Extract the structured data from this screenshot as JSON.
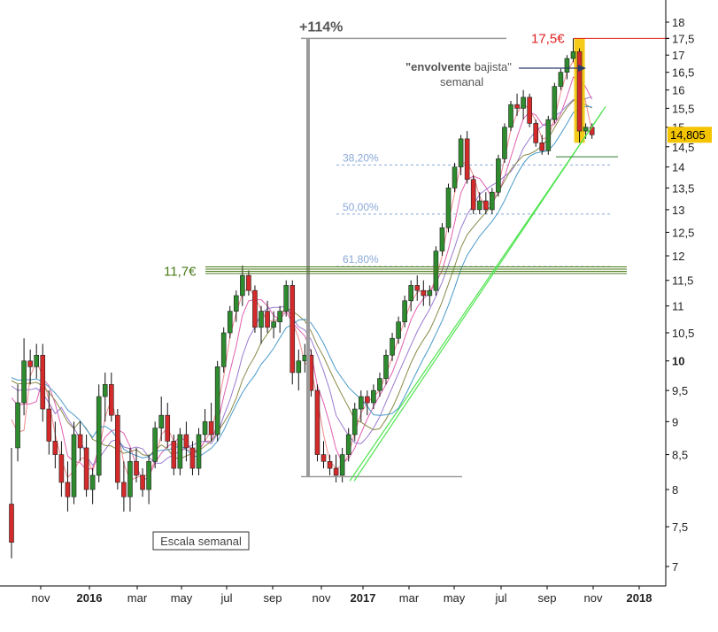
{
  "chart_data": {
    "type": "candlestick",
    "timeframe_label": "Escala semanal",
    "ylim": [
      6.8,
      18.2
    ],
    "y_scale": "log",
    "x_ticks": [
      {
        "label": "nov",
        "bold": false
      },
      {
        "label": "2016",
        "bold": true
      },
      {
        "label": "mar",
        "bold": false
      },
      {
        "label": "may",
        "bold": false
      },
      {
        "label": "jul",
        "bold": false
      },
      {
        "label": "sep",
        "bold": false
      },
      {
        "label": "nov",
        "bold": false
      },
      {
        "label": "2017",
        "bold": true
      },
      {
        "label": "mar",
        "bold": false
      },
      {
        "label": "may",
        "bold": false
      },
      {
        "label": "jul",
        "bold": false
      },
      {
        "label": "sep",
        "bold": false
      },
      {
        "label": "nov",
        "bold": false
      },
      {
        "label": "2018",
        "bold": true
      }
    ],
    "y_ticks": [
      {
        "label": "18",
        "value": 18
      },
      {
        "label": "17,5",
        "value": 17.5
      },
      {
        "label": "17",
        "value": 17
      },
      {
        "label": "16,5",
        "value": 16.5
      },
      {
        "label": "16",
        "value": 16
      },
      {
        "label": "15,5",
        "value": 15.5
      },
      {
        "label": "15",
        "value": 15
      },
      {
        "label": "14,5",
        "value": 14.5
      },
      {
        "label": "14",
        "value": 14
      },
      {
        "label": "13,5",
        "value": 13.5
      },
      {
        "label": "13",
        "value": 13
      },
      {
        "label": "12,5",
        "value": 12.5
      },
      {
        "label": "12",
        "value": 12
      },
      {
        "label": "11,5",
        "value": 11.5
      },
      {
        "label": "11",
        "value": 11
      },
      {
        "label": "10,5",
        "value": 10.5
      },
      {
        "label": "10",
        "value": 10
      },
      {
        "label": "9,5",
        "value": 9.5
      },
      {
        "label": "9",
        "value": 9
      },
      {
        "label": "8,5",
        "value": 8.5
      },
      {
        "label": "8",
        "value": 8
      },
      {
        "label": "7,5",
        "value": 7.5
      },
      {
        "label": "7",
        "value": 7
      }
    ],
    "last_price_label": "14,805",
    "last_price": 14.805,
    "annotations": {
      "gain_label": "+114%",
      "gain_low": 8.18,
      "gain_high": 17.5,
      "top_label": "17,5€",
      "top_value": 17.5,
      "resistance_label": "11,7€",
      "resistance_value": 11.7,
      "pattern_label_bold": "\"envolvente ",
      "pattern_label_rest": "bajista\"",
      "pattern_label_line2": "semanal",
      "fib_levels": [
        {
          "label": "38,20%",
          "value": 14.05
        },
        {
          "label": "50,00%",
          "value": 12.9
        },
        {
          "label": "61,80%",
          "value": 11.78
        }
      ],
      "support_value": 14.25
    },
    "colors": {
      "up": "#2e8b2e",
      "down": "#d42a2a",
      "gain": "#9a9a9a",
      "top_line": "#e02020",
      "resistance": "#4a7a1a",
      "trendline": "#4ee44e",
      "highlight": "#f5c400",
      "fib": "#8aa8d8"
    },
    "candles": [
      [
        7.8,
        8.6,
        7.1,
        7.3
      ],
      [
        8.6,
        9.6,
        8.4,
        9.3
      ],
      [
        9.3,
        10.4,
        9.1,
        10.0
      ],
      [
        10.0,
        10.2,
        9.6,
        9.9
      ],
      [
        9.9,
        10.3,
        9.7,
        10.1
      ],
      [
        10.1,
        10.3,
        9.0,
        9.2
      ],
      [
        9.2,
        9.5,
        8.5,
        8.7
      ],
      [
        8.7,
        9.0,
        8.3,
        8.5
      ],
      [
        8.5,
        8.7,
        7.9,
        8.1
      ],
      [
        8.1,
        8.4,
        7.7,
        7.9
      ],
      [
        7.9,
        9.0,
        7.8,
        8.8
      ],
      [
        8.8,
        9.0,
        8.4,
        8.6
      ],
      [
        8.6,
        8.8,
        7.9,
        8.0
      ],
      [
        8.0,
        8.3,
        7.8,
        8.2
      ],
      [
        8.2,
        9.6,
        8.1,
        9.4
      ],
      [
        9.4,
        9.8,
        9.0,
        9.6
      ],
      [
        9.6,
        9.8,
        9.0,
        9.1
      ],
      [
        9.1,
        9.2,
        8.0,
        8.1
      ],
      [
        8.1,
        8.4,
        7.7,
        7.9
      ],
      [
        7.9,
        8.6,
        7.7,
        8.4
      ],
      [
        8.4,
        8.6,
        8.1,
        8.2
      ],
      [
        8.2,
        8.3,
        7.9,
        8.0
      ],
      [
        8.0,
        8.5,
        7.8,
        8.4
      ],
      [
        8.4,
        9.0,
        8.3,
        8.9
      ],
      [
        8.9,
        9.4,
        8.7,
        9.1
      ],
      [
        9.1,
        9.3,
        8.6,
        8.7
      ],
      [
        8.7,
        8.8,
        8.2,
        8.3
      ],
      [
        8.3,
        8.9,
        8.2,
        8.8
      ],
      [
        8.8,
        9.0,
        8.4,
        8.6
      ],
      [
        8.6,
        8.7,
        8.2,
        8.3
      ],
      [
        8.3,
        8.9,
        8.2,
        8.8
      ],
      [
        8.8,
        9.2,
        8.7,
        9.0
      ],
      [
        9.0,
        9.3,
        8.7,
        8.8
      ],
      [
        8.8,
        10.0,
        8.7,
        9.9
      ],
      [
        9.9,
        10.6,
        9.8,
        10.5
      ],
      [
        10.5,
        11.0,
        10.4,
        10.9
      ],
      [
        10.9,
        11.3,
        10.7,
        11.2
      ],
      [
        11.2,
        11.8,
        11.0,
        11.6
      ],
      [
        11.6,
        11.7,
        11.2,
        11.3
      ],
      [
        11.3,
        11.4,
        10.5,
        10.6
      ],
      [
        10.6,
        11.0,
        10.3,
        10.9
      ],
      [
        10.9,
        11.1,
        10.5,
        10.6
      ],
      [
        10.6,
        10.9,
        10.4,
        10.7
      ],
      [
        10.7,
        11.0,
        10.5,
        10.9
      ],
      [
        10.9,
        11.5,
        10.8,
        11.4
      ],
      [
        11.4,
        11.5,
        9.6,
        9.8
      ],
      [
        9.8,
        10.2,
        9.5,
        10.0
      ],
      [
        10.0,
        10.3,
        9.8,
        10.1
      ],
      [
        10.1,
        10.2,
        9.4,
        9.5
      ],
      [
        9.5,
        9.6,
        8.4,
        8.5
      ],
      [
        8.5,
        8.7,
        8.3,
        8.4
      ],
      [
        8.4,
        8.5,
        8.2,
        8.3
      ],
      [
        8.3,
        8.5,
        8.1,
        8.2
      ],
      [
        8.2,
        8.6,
        8.1,
        8.5
      ],
      [
        8.5,
        8.9,
        8.4,
        8.8
      ],
      [
        8.8,
        9.3,
        8.7,
        9.2
      ],
      [
        9.2,
        9.5,
        9.0,
        9.4
      ],
      [
        9.4,
        9.5,
        9.1,
        9.3
      ],
      [
        9.3,
        9.6,
        9.2,
        9.5
      ],
      [
        9.5,
        9.8,
        9.4,
        9.7
      ],
      [
        9.7,
        10.2,
        9.6,
        10.1
      ],
      [
        10.1,
        10.5,
        10.0,
        10.4
      ],
      [
        10.4,
        10.8,
        10.3,
        10.7
      ],
      [
        10.7,
        11.2,
        10.6,
        11.1
      ],
      [
        11.1,
        11.5,
        10.9,
        11.4
      ],
      [
        11.4,
        11.6,
        11.1,
        11.3
      ],
      [
        11.3,
        11.5,
        11.0,
        11.2
      ],
      [
        11.2,
        11.4,
        11.0,
        11.3
      ],
      [
        11.3,
        12.2,
        11.2,
        12.1
      ],
      [
        12.1,
        12.7,
        12.0,
        12.6
      ],
      [
        12.6,
        13.6,
        12.5,
        13.5
      ],
      [
        13.5,
        14.1,
        13.4,
        14.0
      ],
      [
        14.0,
        14.8,
        13.8,
        14.7
      ],
      [
        14.7,
        14.9,
        13.6,
        13.7
      ],
      [
        13.7,
        13.8,
        12.9,
        13.0
      ],
      [
        13.0,
        13.4,
        12.9,
        13.2
      ],
      [
        13.2,
        13.4,
        12.9,
        13.0
      ],
      [
        13.0,
        13.5,
        12.9,
        13.4
      ],
      [
        13.4,
        14.3,
        13.3,
        14.2
      ],
      [
        14.2,
        15.1,
        14.1,
        15.0
      ],
      [
        15.0,
        15.7,
        14.9,
        15.6
      ],
      [
        15.6,
        15.9,
        15.3,
        15.5
      ],
      [
        15.5,
        16.0,
        15.2,
        15.8
      ],
      [
        15.8,
        15.9,
        15.0,
        15.1
      ],
      [
        15.1,
        15.2,
        14.5,
        14.6
      ],
      [
        14.6,
        14.8,
        14.3,
        14.4
      ],
      [
        14.4,
        15.3,
        14.3,
        15.2
      ],
      [
        15.2,
        16.2,
        15.1,
        16.1
      ],
      [
        16.1,
        16.6,
        16.0,
        16.5
      ],
      [
        16.5,
        17.0,
        16.3,
        16.9
      ],
      [
        16.9,
        17.5,
        16.8,
        17.1
      ],
      [
        17.1,
        17.2,
        14.6,
        14.9
      ],
      [
        14.9,
        15.1,
        14.7,
        15.0
      ],
      [
        15.0,
        15.1,
        14.7,
        14.805
      ]
    ]
  }
}
